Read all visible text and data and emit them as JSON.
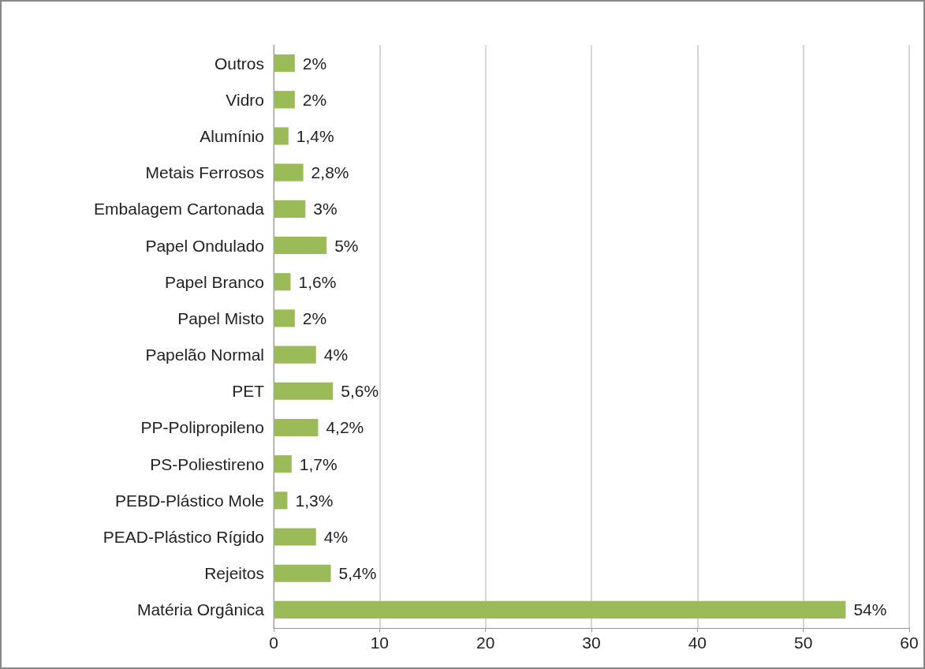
{
  "chart_data": {
    "type": "bar",
    "orientation": "horizontal",
    "categories": [
      "Outros",
      "Vidro",
      "Alumínio",
      "Metais Ferrosos",
      "Embalagem Cartonada",
      "Papel Ondulado",
      "Papel Branco",
      "Papel Misto",
      "Papelão Normal",
      "PET",
      "PP-Polipropileno",
      "PS-Poliestireno",
      "PEBD-Plástico Mole",
      "PEAD-Plástico Rígido",
      "Rejeitos",
      "Matéria Orgânica"
    ],
    "values": [
      2,
      2,
      1.4,
      2.8,
      3,
      5,
      1.6,
      2,
      4,
      5.6,
      4.2,
      1.7,
      1.3,
      4,
      5.4,
      54
    ],
    "value_labels": [
      "2%",
      "2%",
      "1,4%",
      "2,8%",
      "3%",
      "5%",
      "1,6%",
      "2%",
      "4%",
      "5,6%",
      "4,2%",
      "1,7%",
      "1,3%",
      "4%",
      "5,4%",
      "54%"
    ],
    "color": "#9bbb59",
    "xlim": [
      0,
      60
    ],
    "xticks": [
      0,
      10,
      20,
      30,
      40,
      50,
      60
    ],
    "grid": "x"
  }
}
